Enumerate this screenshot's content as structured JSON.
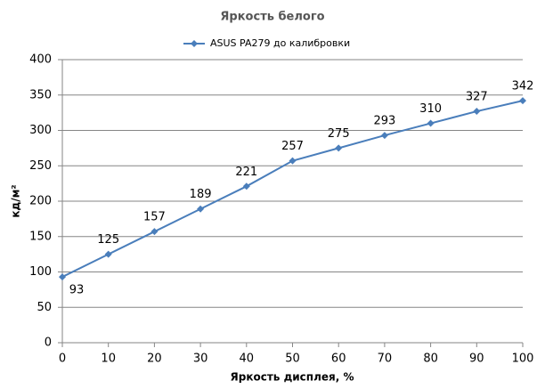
{
  "chart_data": {
    "type": "line",
    "title": "Яркость белого",
    "x_label": "Яркость дисплея, %",
    "y_label": "кд/м²",
    "x": [
      0,
      10,
      20,
      30,
      40,
      50,
      60,
      70,
      80,
      90,
      100
    ],
    "series": [
      {
        "name": "ASUS PA279 до калибровки",
        "color": "#4a7ebb",
        "values": [
          93,
          125,
          157,
          189,
          221,
          257,
          275,
          293,
          310,
          327,
          342
        ]
      }
    ],
    "xlim": [
      0,
      100
    ],
    "xticks": [
      0,
      10,
      20,
      30,
      40,
      50,
      60,
      70,
      80,
      90,
      100
    ],
    "ylim": [
      0,
      400
    ],
    "yticks": [
      0,
      50,
      100,
      150,
      200,
      250,
      300,
      350,
      400
    ],
    "grid": true,
    "legend": "top"
  }
}
